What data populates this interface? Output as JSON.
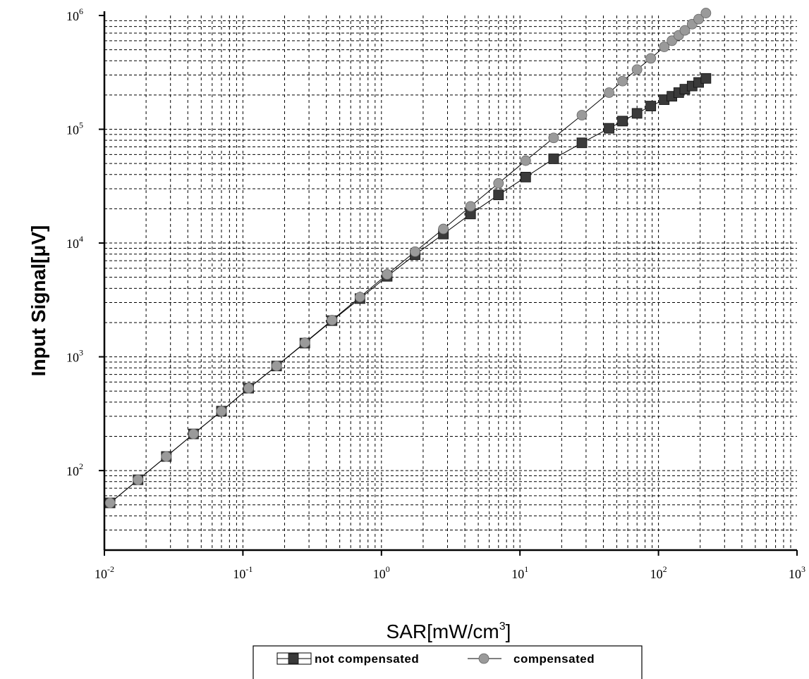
{
  "chart_data": {
    "type": "scatter",
    "title": "",
    "xlabel": "SAR[mW/cm",
    "xlabel_sup": "3",
    "xlabel_end": "]",
    "ylabel": "Input Signal[μV]",
    "xscale": "log",
    "yscale": "log",
    "xlim": [
      0.01,
      1000
    ],
    "ylim": [
      20,
      1000000
    ],
    "grid": true,
    "legend_position": "bottom-center",
    "x_ticks": [
      {
        "value": 0.01,
        "base": "10",
        "exp": "-2"
      },
      {
        "value": 0.1,
        "base": "10",
        "exp": "-1"
      },
      {
        "value": 1,
        "base": "10",
        "exp": "0"
      },
      {
        "value": 10,
        "base": "10",
        "exp": "1"
      },
      {
        "value": 100,
        "base": "10",
        "exp": "2"
      },
      {
        "value": 1000,
        "base": "10",
        "exp": "3"
      }
    ],
    "y_ticks": [
      {
        "value": 100,
        "base": "10",
        "exp": "2"
      },
      {
        "value": 1000,
        "base": "10",
        "exp": "3"
      },
      {
        "value": 10000,
        "base": "10",
        "exp": "4"
      },
      {
        "value": 100000,
        "base": "10",
        "exp": "5"
      },
      {
        "value": 1000000,
        "base": "10",
        "exp": "6"
      }
    ],
    "series": [
      {
        "name": "not compensated",
        "marker": "square",
        "color": "#3a3a3a",
        "x": [
          0.011,
          0.0175,
          0.028,
          0.044,
          0.07,
          0.11,
          0.175,
          0.28,
          0.44,
          0.7,
          1.1,
          1.75,
          2.8,
          4.4,
          7.0,
          11,
          17.5,
          28,
          44,
          55,
          70,
          88,
          110,
          125,
          140,
          155,
          175,
          195,
          220
        ],
        "y": [
          52,
          83,
          133,
          210,
          333,
          530,
          830,
          1320,
          2080,
          3250,
          5100,
          7900,
          12000,
          18000,
          26500,
          38000,
          55000,
          76000,
          102000,
          118000,
          138000,
          160000,
          182000,
          195000,
          210000,
          225000,
          240000,
          258000,
          280000
        ]
      },
      {
        "name": "compensated",
        "marker": "circle",
        "color": "#9a9a9a",
        "x": [
          0.011,
          0.0175,
          0.028,
          0.044,
          0.07,
          0.11,
          0.175,
          0.28,
          0.44,
          0.7,
          1.1,
          1.75,
          2.8,
          4.4,
          7.0,
          11,
          17.5,
          28,
          44,
          55,
          70,
          88,
          110,
          125,
          140,
          155,
          175,
          195,
          220
        ],
        "y": [
          52,
          83,
          133,
          210,
          333,
          530,
          830,
          1330,
          2100,
          3350,
          5300,
          8400,
          13300,
          21000,
          33500,
          53000,
          84000,
          133000,
          210000,
          265000,
          335000,
          420000,
          530000,
          600000,
          670000,
          740000,
          840000,
          930000,
          1050000
        ]
      }
    ]
  }
}
